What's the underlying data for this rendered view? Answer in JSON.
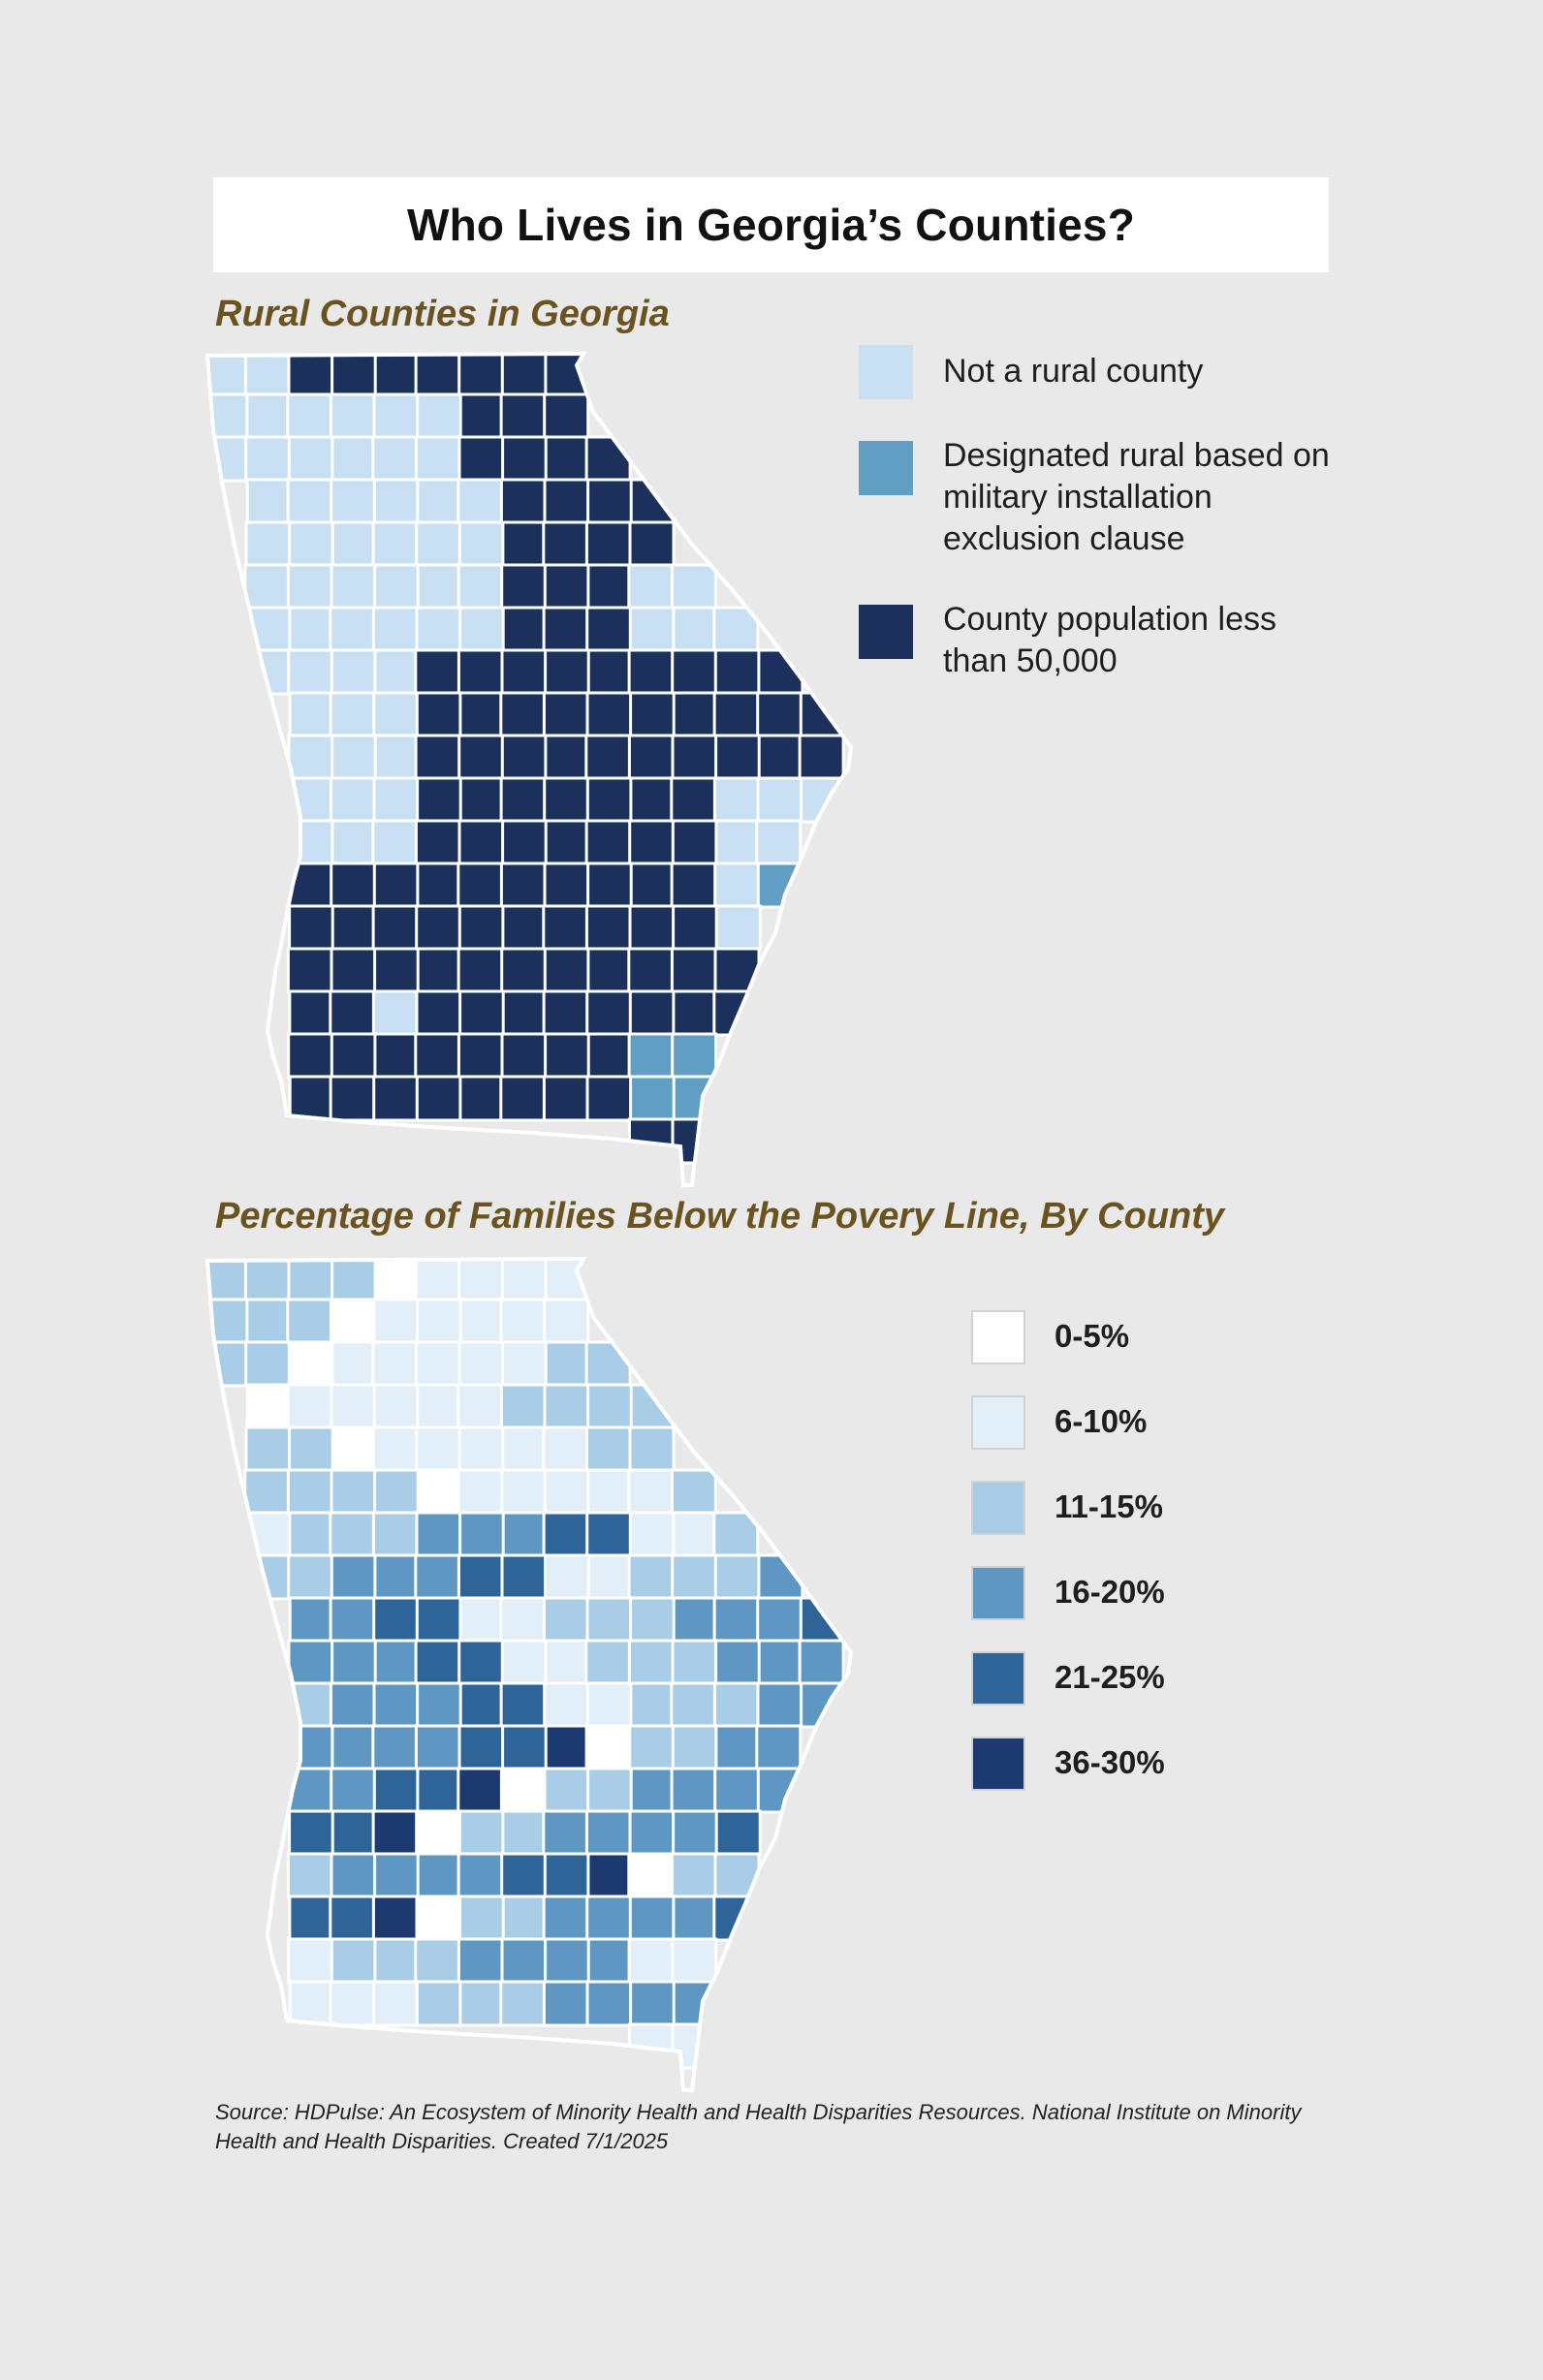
{
  "title": "Who Lives in Georgia’s Counties?",
  "rural_map": {
    "title": "Rural Counties in Georgia",
    "legend": [
      {
        "label": "Not a rural county",
        "color": "#c9e0f2"
      },
      {
        "label": "Designated rural based on military installation exclusion clause",
        "color": "#629dc4"
      },
      {
        "label": "County population less than 50,000",
        "color": "#1b305b"
      }
    ]
  },
  "poverty_map": {
    "title": "Percentage of Families Below the Povery Line, By County",
    "legend": [
      {
        "label": "0-5%",
        "color": "#ffffff"
      },
      {
        "label": "6-10%",
        "color": "#e2eef8"
      },
      {
        "label": "11-15%",
        "color": "#a9cde6"
      },
      {
        "label": "16-20%",
        "color": "#5e98c2"
      },
      {
        "label": "21-25%",
        "color": "#2e6498"
      },
      {
        "label": "36-30%",
        "color": "#1c3a70"
      }
    ]
  },
  "source": "Source: HDPulse: An Ecosystem of Minority Health and Health Disparities Resources. National Institute on Minority Health and Health Disparities. Created 7/1/2025"
}
